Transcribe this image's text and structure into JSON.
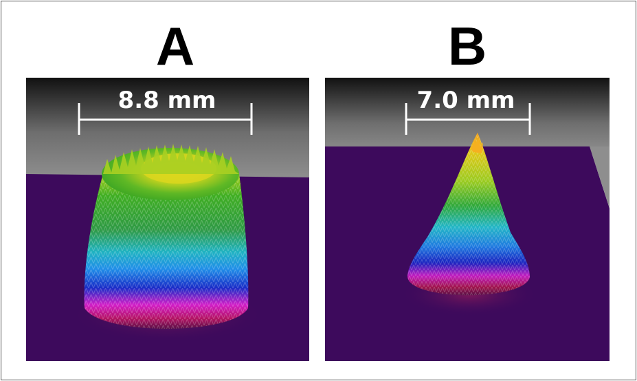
{
  "panels": [
    {
      "label": "A",
      "dimension": "8.8 mm"
    },
    {
      "label": "B",
      "dimension": "7.0 mm"
    }
  ],
  "colors": {
    "floor": "#3d0a5c",
    "background_top": "#111111",
    "background_bottom": "#8c8c8c",
    "measure_line": "#ffffff"
  }
}
